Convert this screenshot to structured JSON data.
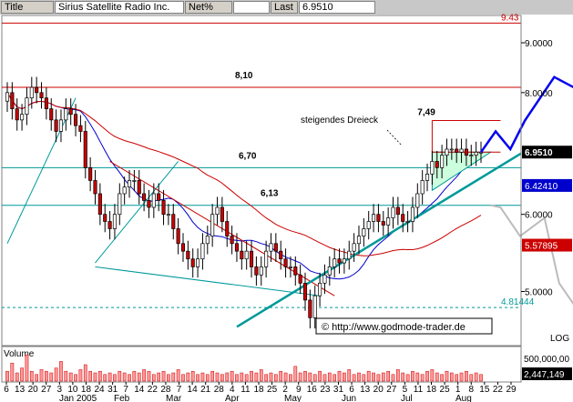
{
  "header": {
    "title_label": "Title",
    "title_value": "Sirius Satellite Radio Inc.",
    "mode_label": "Net%",
    "mode_value": "",
    "last_label": "Last",
    "last_value": "6.9510"
  },
  "colors": {
    "candle_up": "#ffffff",
    "candle_down": "#cc0000",
    "ma_fast": "#0000cc",
    "ma_slow": "#cc0000",
    "trendline": "#009999",
    "pattern_fill": "#ccffdd",
    "projection_bull": "#0000ee",
    "projection_bear": "#bbbbbb",
    "last_price_bg": "#000000",
    "ma_fast_bg": "#0000cc",
    "ma_slow_bg": "#cc0000"
  },
  "chart_data": {
    "type": "candlestick",
    "instrument": "Sirius Satellite Radio Inc.",
    "y_scale": "log",
    "scale_label": "LOG",
    "ylim": [
      4.4,
      9.6
    ],
    "y_ticks": [
      {
        "value": 9.0,
        "label": "9.0000"
      },
      {
        "value": 8.0,
        "label": "8.0000"
      },
      {
        "value": 6.0,
        "label": "6.0000"
      },
      {
        "value": 5.0,
        "label": "5.0000"
      }
    ],
    "price_badges": [
      {
        "value": 6.951,
        "label": "6.9510",
        "kind": "last"
      },
      {
        "value": 6.4241,
        "label": "6.42410",
        "kind": "ma_fast"
      },
      {
        "value": 5.57895,
        "label": "5.57895",
        "kind": "ma_slow"
      }
    ],
    "level_tags": [
      {
        "value": 9.43,
        "label": "9.43",
        "color": "#cc0000"
      },
      {
        "value": 4.8144,
        "label": "4.81444",
        "color": "#009999"
      }
    ],
    "x_day_labels": [
      "6",
      "13",
      "20",
      "27",
      "3",
      "10",
      "18",
      "24",
      "31",
      "7",
      "14",
      "22",
      "28",
      "7",
      "14",
      "21",
      "28",
      "4",
      "11",
      "18",
      "25",
      "2",
      "9",
      "16",
      "23",
      "31",
      "6",
      "13",
      "20",
      "27",
      "5",
      "11",
      "18",
      "25",
      "1",
      "8",
      "15",
      "22",
      "29"
    ],
    "x_month_labels": [
      "Jan 2005",
      "Feb",
      "Mar",
      "Apr",
      "May",
      "Jun",
      "Jul",
      "Aug"
    ],
    "horizontal_levels": [
      {
        "value": 9.43,
        "label": "",
        "color": "#cc0000"
      },
      {
        "value": 8.1,
        "label": "8,10",
        "color": "#cc0000"
      },
      {
        "value": 6.7,
        "label": "6,70",
        "color": "#009999"
      },
      {
        "value": 6.13,
        "label": "6,13",
        "color": "#009999"
      },
      {
        "value": 4.8144,
        "label": "",
        "color": "#009999",
        "dashed": true
      }
    ],
    "annotations": [
      {
        "text": "7,49"
      },
      {
        "text": "steigendes Dreieck"
      }
    ],
    "watermark": "© http://www.godmode-trader.de",
    "closes": [
      8.0,
      7.7,
      7.5,
      7.6,
      7.9,
      8.1,
      8.0,
      7.9,
      7.7,
      7.5,
      7.3,
      7.5,
      7.7,
      7.6,
      7.4,
      7.3,
      6.7,
      6.5,
      6.3,
      6.0,
      5.9,
      5.8,
      6.0,
      6.3,
      6.4,
      6.5,
      6.5,
      6.3,
      6.2,
      6.1,
      6.3,
      6.2,
      6.0,
      6.0,
      5.8,
      5.6,
      5.5,
      5.4,
      5.3,
      5.4,
      5.6,
      5.7,
      6.0,
      6.1,
      5.9,
      5.7,
      5.6,
      5.5,
      5.4,
      5.5,
      5.3,
      5.2,
      5.3,
      5.5,
      5.6,
      5.5,
      5.4,
      5.3,
      5.3,
      5.2,
      5.1,
      4.9,
      4.7,
      4.95,
      5.1,
      5.2,
      5.3,
      5.4,
      5.35,
      5.4,
      5.5,
      5.6,
      5.7,
      5.8,
      5.9,
      6.0,
      5.9,
      5.85,
      5.95,
      6.1,
      6.0,
      5.9,
      5.9,
      6.1,
      6.3,
      6.5,
      6.6,
      6.8,
      6.7,
      6.9,
      7.0,
      7.0,
      6.95,
      7.0,
      6.9,
      6.9,
      6.95,
      6.95
    ],
    "volume": {
      "label": "Volume",
      "y_ticks": [
        {
          "value": 500000000,
          "label": "500,000,00"
        }
      ],
      "last_label": "2,447,149",
      "values": [
        0.3,
        0.55,
        0.25,
        0.4,
        0.8,
        0.3,
        0.2,
        0.35,
        0.3,
        0.25,
        0.4,
        0.6,
        0.3,
        0.25,
        0.2,
        0.35,
        0.5,
        0.3,
        0.25,
        0.3,
        0.2,
        0.25,
        0.2,
        0.3,
        0.25,
        0.2,
        0.3,
        0.25,
        0.35,
        0.3,
        0.2,
        0.25,
        0.3,
        0.2,
        0.25,
        0.35,
        0.2,
        0.25,
        0.3,
        0.2,
        0.25,
        0.2,
        0.3,
        0.25,
        0.2,
        0.25,
        0.3,
        0.2,
        0.25,
        0.2,
        0.3,
        0.25,
        0.35,
        0.2,
        0.25,
        0.2,
        0.3,
        0.25,
        0.2,
        0.45,
        0.25,
        0.3,
        0.25,
        0.2,
        0.3,
        0.2,
        0.25,
        0.2,
        0.3,
        0.25,
        0.35,
        0.2,
        0.25,
        0.2,
        0.3,
        0.25,
        0.2,
        0.25,
        0.3,
        0.2,
        0.35,
        0.25,
        0.2,
        0.3,
        0.25,
        0.2,
        0.3,
        0.35,
        0.25,
        0.2,
        0.3,
        0.25,
        0.2,
        0.25,
        0.3,
        0.2,
        0.25,
        0.2
      ]
    }
  }
}
